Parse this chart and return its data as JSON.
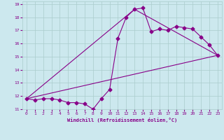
{
  "xlabel": "Windchill (Refroidissement éolien,°C)",
  "xlim": [
    -0.5,
    23.5
  ],
  "ylim": [
    11,
    19.2
  ],
  "xticks": [
    0,
    1,
    2,
    3,
    4,
    5,
    6,
    7,
    8,
    9,
    10,
    11,
    12,
    13,
    14,
    15,
    16,
    17,
    18,
    19,
    20,
    21,
    22,
    23
  ],
  "yticks": [
    11,
    12,
    13,
    14,
    15,
    16,
    17,
    18,
    19
  ],
  "bg_color": "#cce8ee",
  "line_color": "#880088",
  "grid_color": "#aacccc",
  "series1_x": [
    0,
    1,
    2,
    3,
    4,
    5,
    6,
    7,
    8,
    9,
    10,
    11,
    12,
    13,
    14,
    15,
    16,
    17,
    18,
    19,
    20,
    21,
    22,
    23
  ],
  "series1_y": [
    11.8,
    11.7,
    11.8,
    11.8,
    11.7,
    11.5,
    11.5,
    11.4,
    11.0,
    11.8,
    12.5,
    16.4,
    18.0,
    18.6,
    18.7,
    16.9,
    17.1,
    17.0,
    17.3,
    17.2,
    17.1,
    16.5,
    15.9,
    15.1
  ],
  "series2_x": [
    0,
    23
  ],
  "series2_y": [
    11.8,
    15.1
  ],
  "series3_x": [
    0,
    13,
    23
  ],
  "series3_y": [
    11.8,
    18.6,
    15.1
  ],
  "marker_size": 2.5,
  "line_width": 0.8
}
